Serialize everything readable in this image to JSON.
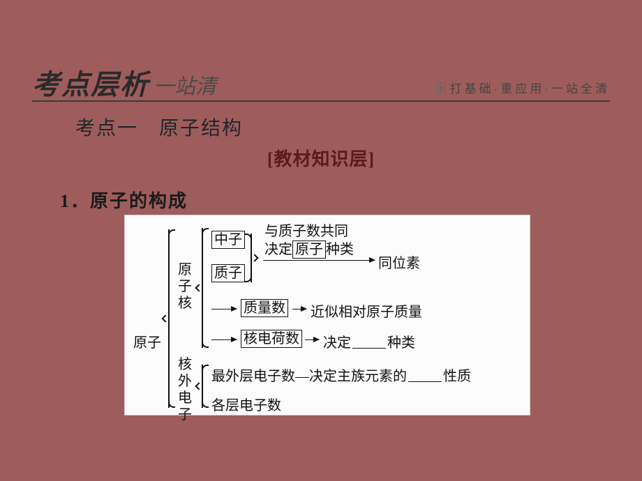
{
  "header": {
    "title_main": "考点层析",
    "title_sub": "一站清",
    "tagline": "打基础·重应用·一站全清"
  },
  "topic": "考点一　原子结构",
  "bracket_title": "[教材知识层]",
  "point": "1．原子的构成",
  "diagram": {
    "root": "原子",
    "nucleus_label": "原子核",
    "electron_label": "核外电子",
    "neutron": "中子",
    "proton": "质子",
    "line_share": "与质子数共同",
    "line_type_pre": "决定",
    "box_atom": "原子",
    "line_type_post": "种类",
    "isotope": "同位素",
    "mass_pre_box": "质量数",
    "mass_post": "近似相对原子质量",
    "charge_box": "核电荷数",
    "charge_post_pre": "决定",
    "charge_post_post": "种类",
    "outer_pre": "最外层电子数—决定主族元素的",
    "outer_post": "性质",
    "layers": "各层电子数",
    "blank_width_1": 48,
    "blank_width_2": 48
  },
  "colors": {
    "bg": "#9e5d5c",
    "diagram_bg": "#fcfcfc",
    "diagram_border": "#d0d0d0",
    "text_dark": "#1a1a1a",
    "text_red": "#5a1b1b",
    "line": "#111111"
  }
}
